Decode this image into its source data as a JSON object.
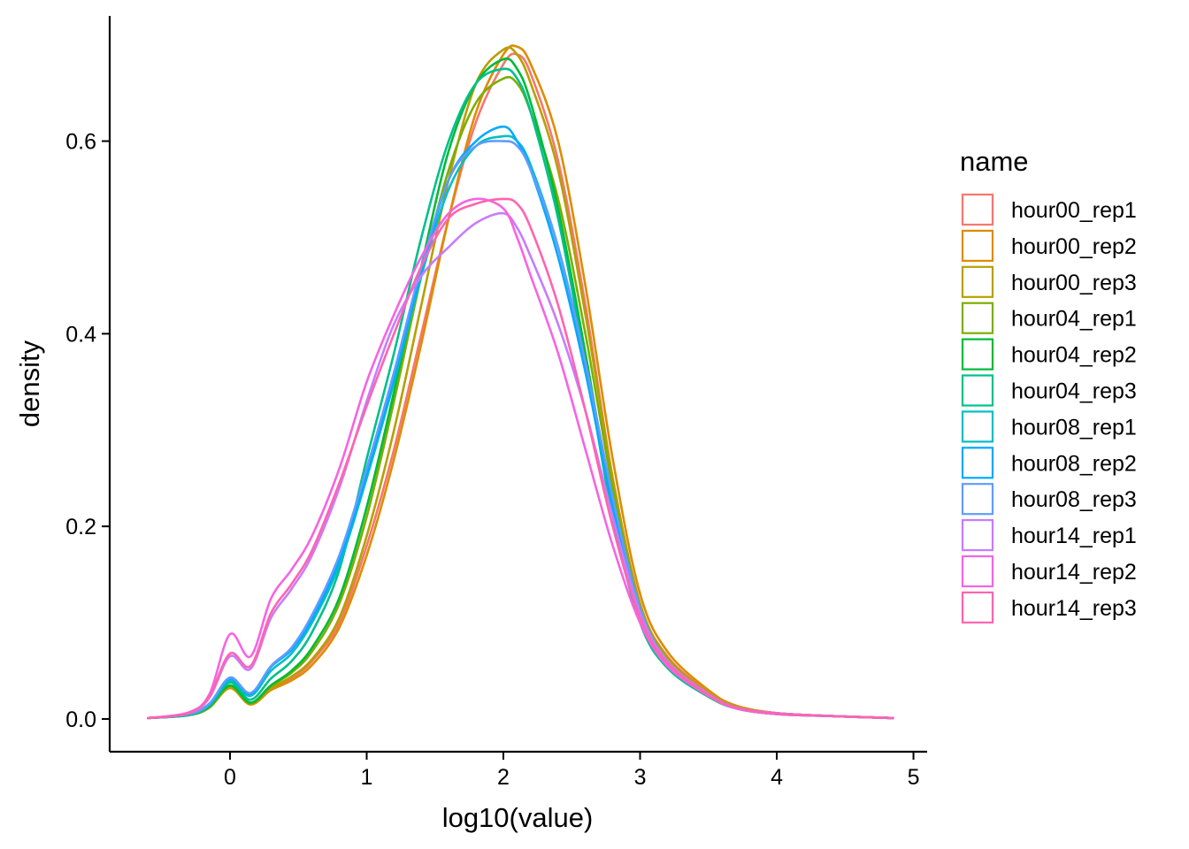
{
  "chart_data": {
    "type": "line",
    "subtype": "density",
    "title": "",
    "xlabel": "log10(value)",
    "ylabel": "density",
    "xlim": [
      -0.88,
      5.1
    ],
    "ylim": [
      -0.034,
      0.73
    ],
    "xticks": [
      0,
      1,
      2,
      3,
      4,
      5
    ],
    "xtick_labels": [
      "0",
      "1",
      "2",
      "3",
      "4",
      "5"
    ],
    "yticks": [
      0.0,
      0.2,
      0.4,
      0.6
    ],
    "ytick_labels": [
      "0.0",
      "0.2",
      "0.4",
      "0.6"
    ],
    "grid": false,
    "legend": {
      "title": "name",
      "position": "right"
    },
    "series": [
      {
        "name": "hour00_rep1",
        "color": "#F8766D",
        "x": [
          -0.6,
          -0.3,
          -0.15,
          0,
          0.15,
          0.3,
          0.45,
          0.6,
          0.8,
          1,
          1.2,
          1.4,
          1.6,
          1.8,
          2,
          2.1,
          2.2,
          2.4,
          2.6,
          2.8,
          3,
          3.2,
          3.5,
          3.7,
          4,
          4.4,
          4.85
        ],
        "y": [
          0.001,
          0.004,
          0.012,
          0.033,
          0.016,
          0.032,
          0.042,
          0.06,
          0.1,
          0.18,
          0.28,
          0.4,
          0.52,
          0.62,
          0.68,
          0.69,
          0.67,
          0.58,
          0.43,
          0.25,
          0.12,
          0.065,
          0.028,
          0.013,
          0.006,
          0.003,
          0.001
        ]
      },
      {
        "name": "hour00_rep2",
        "color": "#DE8C00",
        "x": [
          -0.6,
          -0.3,
          -0.15,
          0,
          0.15,
          0.3,
          0.45,
          0.6,
          0.8,
          1,
          1.2,
          1.4,
          1.6,
          1.8,
          2,
          2.1,
          2.2,
          2.4,
          2.6,
          2.8,
          3,
          3.2,
          3.5,
          3.7,
          4,
          4.4,
          4.85
        ],
        "y": [
          0.001,
          0.004,
          0.012,
          0.032,
          0.015,
          0.03,
          0.04,
          0.056,
          0.095,
          0.17,
          0.27,
          0.39,
          0.52,
          0.63,
          0.69,
          0.698,
          0.68,
          0.6,
          0.45,
          0.27,
          0.13,
          0.07,
          0.03,
          0.014,
          0.006,
          0.003,
          0.001
        ]
      },
      {
        "name": "hour00_rep3",
        "color": "#B79F00",
        "x": [
          -0.6,
          -0.3,
          -0.15,
          0,
          0.15,
          0.3,
          0.45,
          0.6,
          0.8,
          1,
          1.2,
          1.4,
          1.6,
          1.8,
          2,
          2.1,
          2.2,
          2.4,
          2.6,
          2.8,
          3,
          3.2,
          3.5,
          3.7,
          4,
          4.4,
          4.85
        ],
        "y": [
          0.001,
          0.004,
          0.012,
          0.033,
          0.016,
          0.032,
          0.044,
          0.062,
          0.105,
          0.19,
          0.3,
          0.43,
          0.56,
          0.66,
          0.695,
          0.69,
          0.66,
          0.57,
          0.42,
          0.25,
          0.12,
          0.064,
          0.027,
          0.013,
          0.006,
          0.003,
          0.001
        ]
      },
      {
        "name": "hour04_rep1",
        "color": "#7CAE00",
        "x": [
          -0.6,
          -0.3,
          -0.15,
          0,
          0.15,
          0.3,
          0.45,
          0.6,
          0.8,
          1,
          1.2,
          1.4,
          1.6,
          1.8,
          2,
          2.1,
          2.2,
          2.4,
          2.6,
          2.8,
          3,
          3.2,
          3.5,
          3.7,
          4,
          4.4,
          4.85
        ],
        "y": [
          0.001,
          0.004,
          0.012,
          0.034,
          0.016,
          0.034,
          0.048,
          0.07,
          0.12,
          0.21,
          0.33,
          0.46,
          0.57,
          0.64,
          0.665,
          0.66,
          0.63,
          0.54,
          0.4,
          0.24,
          0.115,
          0.06,
          0.026,
          0.012,
          0.006,
          0.003,
          0.001
        ]
      },
      {
        "name": "hour04_rep2",
        "color": "#00BA38",
        "x": [
          -0.6,
          -0.3,
          -0.15,
          0,
          0.15,
          0.3,
          0.45,
          0.6,
          0.8,
          1,
          1.2,
          1.4,
          1.6,
          1.8,
          2,
          2.1,
          2.2,
          2.4,
          2.6,
          2.8,
          3,
          3.2,
          3.5,
          3.7,
          4,
          4.4,
          4.85
        ],
        "y": [
          0.001,
          0.004,
          0.013,
          0.035,
          0.017,
          0.035,
          0.05,
          0.074,
          0.126,
          0.22,
          0.34,
          0.47,
          0.59,
          0.66,
          0.685,
          0.675,
          0.64,
          0.53,
          0.38,
          0.22,
          0.105,
          0.055,
          0.024,
          0.011,
          0.005,
          0.003,
          0.001
        ]
      },
      {
        "name": "hour04_rep3",
        "color": "#00C08B",
        "x": [
          -0.6,
          -0.3,
          -0.15,
          0,
          0.15,
          0.3,
          0.45,
          0.6,
          0.8,
          1,
          1.2,
          1.4,
          1.6,
          1.8,
          2,
          2.1,
          2.2,
          2.4,
          2.6,
          2.8,
          3,
          3.2,
          3.5,
          3.7,
          4,
          4.4,
          4.85
        ],
        "y": [
          0.001,
          0.004,
          0.014,
          0.038,
          0.02,
          0.042,
          0.06,
          0.09,
          0.155,
          0.27,
          0.38,
          0.5,
          0.6,
          0.66,
          0.675,
          0.665,
          0.63,
          0.52,
          0.37,
          0.21,
          0.1,
          0.053,
          0.023,
          0.011,
          0.005,
          0.003,
          0.001
        ]
      },
      {
        "name": "hour08_rep1",
        "color": "#00BFC4",
        "x": [
          -0.6,
          -0.3,
          -0.15,
          0,
          0.15,
          0.3,
          0.45,
          0.6,
          0.8,
          1,
          1.2,
          1.4,
          1.6,
          1.8,
          2,
          2.1,
          2.2,
          2.4,
          2.6,
          2.8,
          3,
          3.2,
          3.5,
          3.7,
          4,
          4.4,
          4.85
        ],
        "y": [
          0.001,
          0.005,
          0.015,
          0.04,
          0.024,
          0.05,
          0.068,
          0.1,
          0.16,
          0.25,
          0.35,
          0.46,
          0.55,
          0.595,
          0.605,
          0.6,
          0.575,
          0.49,
          0.37,
          0.23,
          0.115,
          0.06,
          0.026,
          0.012,
          0.006,
          0.003,
          0.001
        ]
      },
      {
        "name": "hour08_rep2",
        "color": "#00A9FF",
        "x": [
          -0.6,
          -0.3,
          -0.15,
          0,
          0.15,
          0.3,
          0.45,
          0.6,
          0.8,
          1,
          1.2,
          1.4,
          1.6,
          1.8,
          2,
          2.1,
          2.2,
          2.4,
          2.6,
          2.8,
          3,
          3.2,
          3.5,
          3.7,
          4,
          4.4,
          4.85
        ],
        "y": [
          0.001,
          0.005,
          0.016,
          0.042,
          0.026,
          0.054,
          0.072,
          0.104,
          0.165,
          0.255,
          0.355,
          0.465,
          0.56,
          0.6,
          0.615,
          0.6,
          0.57,
          0.48,
          0.36,
          0.22,
          0.11,
          0.058,
          0.025,
          0.012,
          0.006,
          0.003,
          0.001
        ]
      },
      {
        "name": "hour08_rep3",
        "color": "#619CFF",
        "x": [
          -0.6,
          -0.3,
          -0.15,
          0,
          0.15,
          0.3,
          0.45,
          0.6,
          0.8,
          1,
          1.2,
          1.4,
          1.6,
          1.8,
          2,
          2.1,
          2.2,
          2.4,
          2.6,
          2.8,
          3,
          3.2,
          3.5,
          3.7,
          4,
          4.4,
          4.85
        ],
        "y": [
          0.001,
          0.005,
          0.016,
          0.043,
          0.027,
          0.055,
          0.074,
          0.108,
          0.17,
          0.26,
          0.36,
          0.47,
          0.56,
          0.595,
          0.6,
          0.595,
          0.57,
          0.49,
          0.37,
          0.23,
          0.115,
          0.06,
          0.026,
          0.012,
          0.006,
          0.003,
          0.001
        ]
      },
      {
        "name": "hour14_rep1",
        "color": "#C77CFF",
        "x": [
          -0.6,
          -0.3,
          -0.15,
          0,
          0.15,
          0.3,
          0.45,
          0.6,
          0.8,
          1,
          1.2,
          1.4,
          1.6,
          1.8,
          2,
          2.1,
          2.2,
          2.4,
          2.6,
          2.8,
          3,
          3.2,
          3.5,
          3.7,
          4,
          4.4,
          4.85
        ],
        "y": [
          0.001,
          0.006,
          0.022,
          0.065,
          0.052,
          0.105,
          0.135,
          0.17,
          0.24,
          0.33,
          0.41,
          0.46,
          0.49,
          0.515,
          0.525,
          0.51,
          0.48,
          0.41,
          0.32,
          0.21,
          0.11,
          0.06,
          0.026,
          0.012,
          0.006,
          0.003,
          0.001
        ]
      },
      {
        "name": "hour14_rep2",
        "color": "#F564E3",
        "x": [
          -0.6,
          -0.3,
          -0.15,
          0,
          0.15,
          0.3,
          0.45,
          0.6,
          0.8,
          1,
          1.2,
          1.4,
          1.6,
          1.8,
          2,
          2.1,
          2.2,
          2.4,
          2.6,
          2.8,
          3,
          3.2,
          3.5,
          3.7,
          4,
          4.4,
          4.85
        ],
        "y": [
          0.001,
          0.007,
          0.026,
          0.088,
          0.065,
          0.125,
          0.155,
          0.19,
          0.26,
          0.35,
          0.42,
          0.48,
          0.525,
          0.54,
          0.53,
          0.5,
          0.46,
          0.38,
          0.28,
          0.18,
          0.1,
          0.055,
          0.024,
          0.011,
          0.005,
          0.003,
          0.001
        ]
      },
      {
        "name": "hour14_rep3",
        "color": "#FF64B0",
        "x": [
          -0.6,
          -0.3,
          -0.15,
          0,
          0.15,
          0.3,
          0.45,
          0.6,
          0.8,
          1,
          1.2,
          1.4,
          1.6,
          1.8,
          2,
          2.1,
          2.2,
          2.4,
          2.6,
          2.8,
          3,
          3.2,
          3.5,
          3.7,
          4,
          4.4,
          4.85
        ],
        "y": [
          0.001,
          0.006,
          0.024,
          0.068,
          0.055,
          0.11,
          0.14,
          0.175,
          0.245,
          0.325,
          0.4,
          0.47,
          0.52,
          0.535,
          0.54,
          0.535,
          0.51,
          0.43,
          0.32,
          0.2,
          0.105,
          0.058,
          0.025,
          0.012,
          0.006,
          0.003,
          0.001
        ]
      }
    ]
  }
}
